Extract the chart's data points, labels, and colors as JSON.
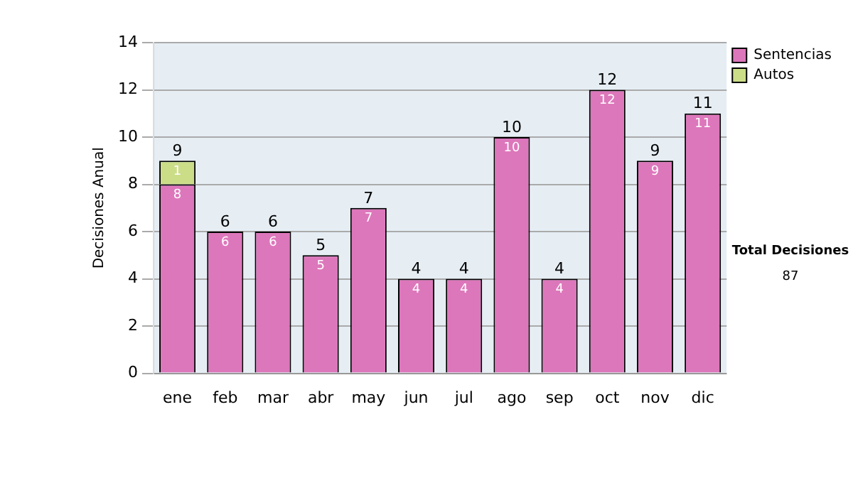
{
  "chart_data": {
    "type": "bar",
    "ylabel": "Decisiones Anual",
    "categories": [
      "ene",
      "feb",
      "mar",
      "abr",
      "may",
      "jun",
      "jul",
      "ago",
      "sep",
      "oct",
      "nov",
      "dic"
    ],
    "series": [
      {
        "name": "Sentencias",
        "color": "#dd77bb",
        "values": [
          8,
          6,
          6,
          5,
          7,
          4,
          4,
          10,
          4,
          12,
          9,
          11
        ]
      },
      {
        "name": "Autos",
        "color": "#ccdd88",
        "values": [
          1,
          null,
          null,
          null,
          null,
          null,
          null,
          null,
          null,
          null,
          null,
          null
        ]
      }
    ],
    "stacked": true,
    "data_labels": true,
    "totals": [
      "9",
      "6",
      "6",
      "5",
      "7",
      "4",
      "4",
      "10",
      "4",
      "12",
      "9",
      "11"
    ],
    "ylim": [
      0,
      14
    ],
    "yticks": [
      0,
      2,
      4,
      6,
      8,
      10,
      12,
      14
    ],
    "grid": "y",
    "legend": "right",
    "annotations": [
      "Total Decisiones",
      "87"
    ]
  }
}
